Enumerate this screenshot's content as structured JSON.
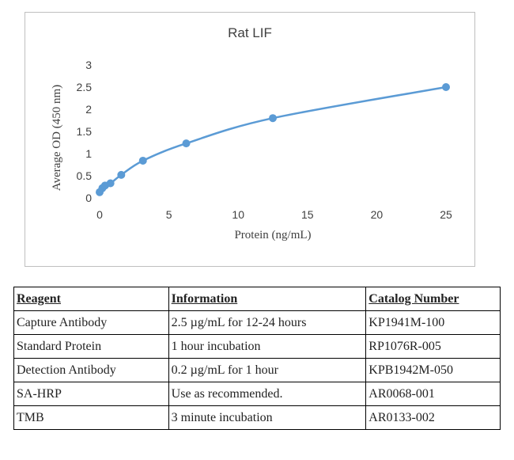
{
  "chart_data": {
    "type": "scatter",
    "title": "Rat LIF",
    "xlabel": "Protein (ng/mL)",
    "ylabel": "Average OD (450 nm)",
    "xlim": [
      0,
      25
    ],
    "ylim": [
      0,
      3
    ],
    "x_ticks": [
      "0",
      "5",
      "10",
      "15",
      "20",
      "25"
    ],
    "y_ticks": [
      "0",
      "0.5",
      "1",
      "1.5",
      "2",
      "2.5",
      "3"
    ],
    "grid": false,
    "legend": "none",
    "smooth_line": true,
    "series": [
      {
        "color": "#5b9bd5",
        "x": [
          0,
          0.195,
          0.39,
          0.78,
          1.56,
          3.125,
          6.25,
          12.5,
          25
        ],
        "y": [
          0.13,
          0.22,
          0.28,
          0.33,
          0.52,
          0.84,
          1.23,
          1.8,
          2.5
        ]
      }
    ]
  },
  "table": {
    "headers": [
      "Reagent",
      "Information",
      "Catalog Number"
    ],
    "rows": [
      [
        "Capture Antibody",
        "2.5 µg/mL for 12-24 hours",
        "KP1941M-100"
      ],
      [
        "Standard Protein",
        "1 hour incubation",
        "RP1076R-005"
      ],
      [
        "Detection Antibody",
        "0.2 µg/mL for 1 hour",
        "KPB1942M-050"
      ],
      [
        "SA-HRP",
        "Use as recommended.",
        "AR0068-001"
      ],
      [
        "TMB",
        "3 minute incubation",
        "AR0133-002"
      ]
    ]
  }
}
